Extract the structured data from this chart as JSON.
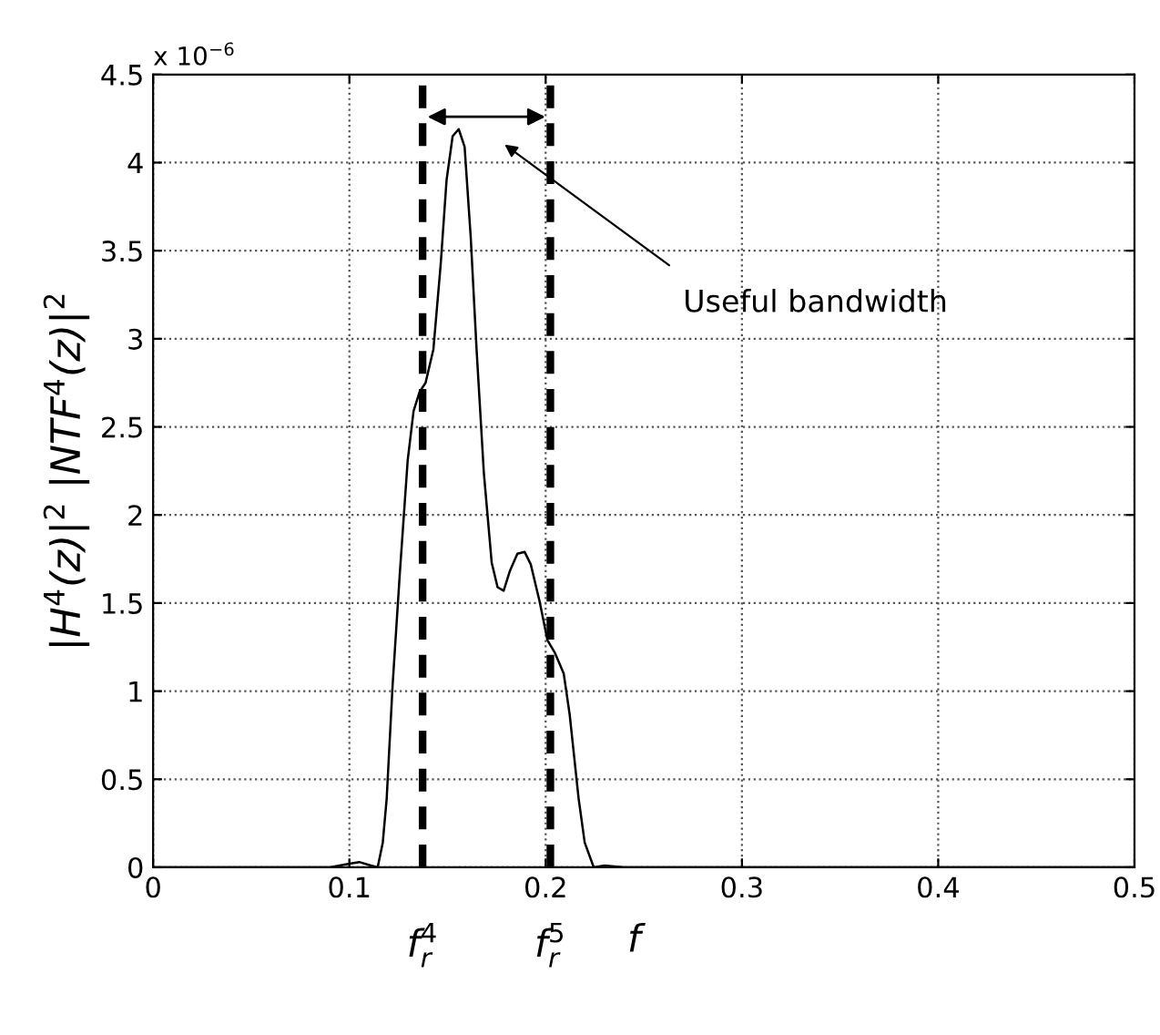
{
  "chart_data": {
    "type": "line",
    "xlabel": "f",
    "ylabel": "|H$^{4}$(z)|$^{2}$ |NTF$^{4}$(z)|$^{2}$",
    "x": [
      0,
      0.05,
      0.09,
      0.1,
      0.105,
      0.111,
      0.1144,
      0.117,
      0.119,
      0.122,
      0.1257,
      0.1297,
      0.1327,
      0.1358,
      0.1388,
      0.1428,
      0.1465,
      0.1495,
      0.1526,
      0.1557,
      0.1587,
      0.1618,
      0.1648,
      0.1685,
      0.1725,
      0.1755,
      0.1786,
      0.1817,
      0.1856,
      0.1893,
      0.1924,
      0.1969,
      0.2009,
      0.2046,
      0.2092,
      0.2122,
      0.2168,
      0.2199,
      0.2245,
      0.23,
      0.24,
      0.3,
      0.4,
      0.5
    ],
    "series": [
      {
        "color": "#000000",
        "values": [
          0,
          0,
          0,
          0.02,
          0.03,
          0.01,
          0,
          0.14,
          0.39,
          1.03,
          1.67,
          2.31,
          2.59,
          2.7,
          2.75,
          2.94,
          3.42,
          3.9,
          4.15,
          4.19,
          4.09,
          3.58,
          2.94,
          2.24,
          1.73,
          1.59,
          1.57,
          1.68,
          1.78,
          1.79,
          1.72,
          1.51,
          1.29,
          1.22,
          1.1,
          0.87,
          0.39,
          0.14,
          0,
          0.01,
          0,
          0,
          0,
          0
        ]
      }
    ],
    "xlim": [
      0,
      0.5
    ],
    "xticks": [
      0,
      0.1,
      0.2,
      0.3,
      0.4,
      0.5
    ],
    "ylim": [
      0,
      4.5
    ],
    "yticks": [
      0,
      0.5,
      1,
      1.5,
      2,
      2.5,
      3,
      3.5,
      4,
      4.5
    ],
    "grid": true,
    "marker": "none",
    "line_style": "solid",
    "ref_lines": [
      {
        "axis": "x",
        "value": 0.1373,
        "label": "f$^{4}$$_{r}$",
        "line_style": "dashed",
        "color": "#000000"
      },
      {
        "axis": "x",
        "value": 0.2024,
        "label": "f$^{5}$$_{r}$",
        "line_style": "dashed",
        "color": "#000000"
      }
    ],
    "annotations": [
      "x 10$^{−6}$",
      "Useful bandwidth"
    ]
  }
}
